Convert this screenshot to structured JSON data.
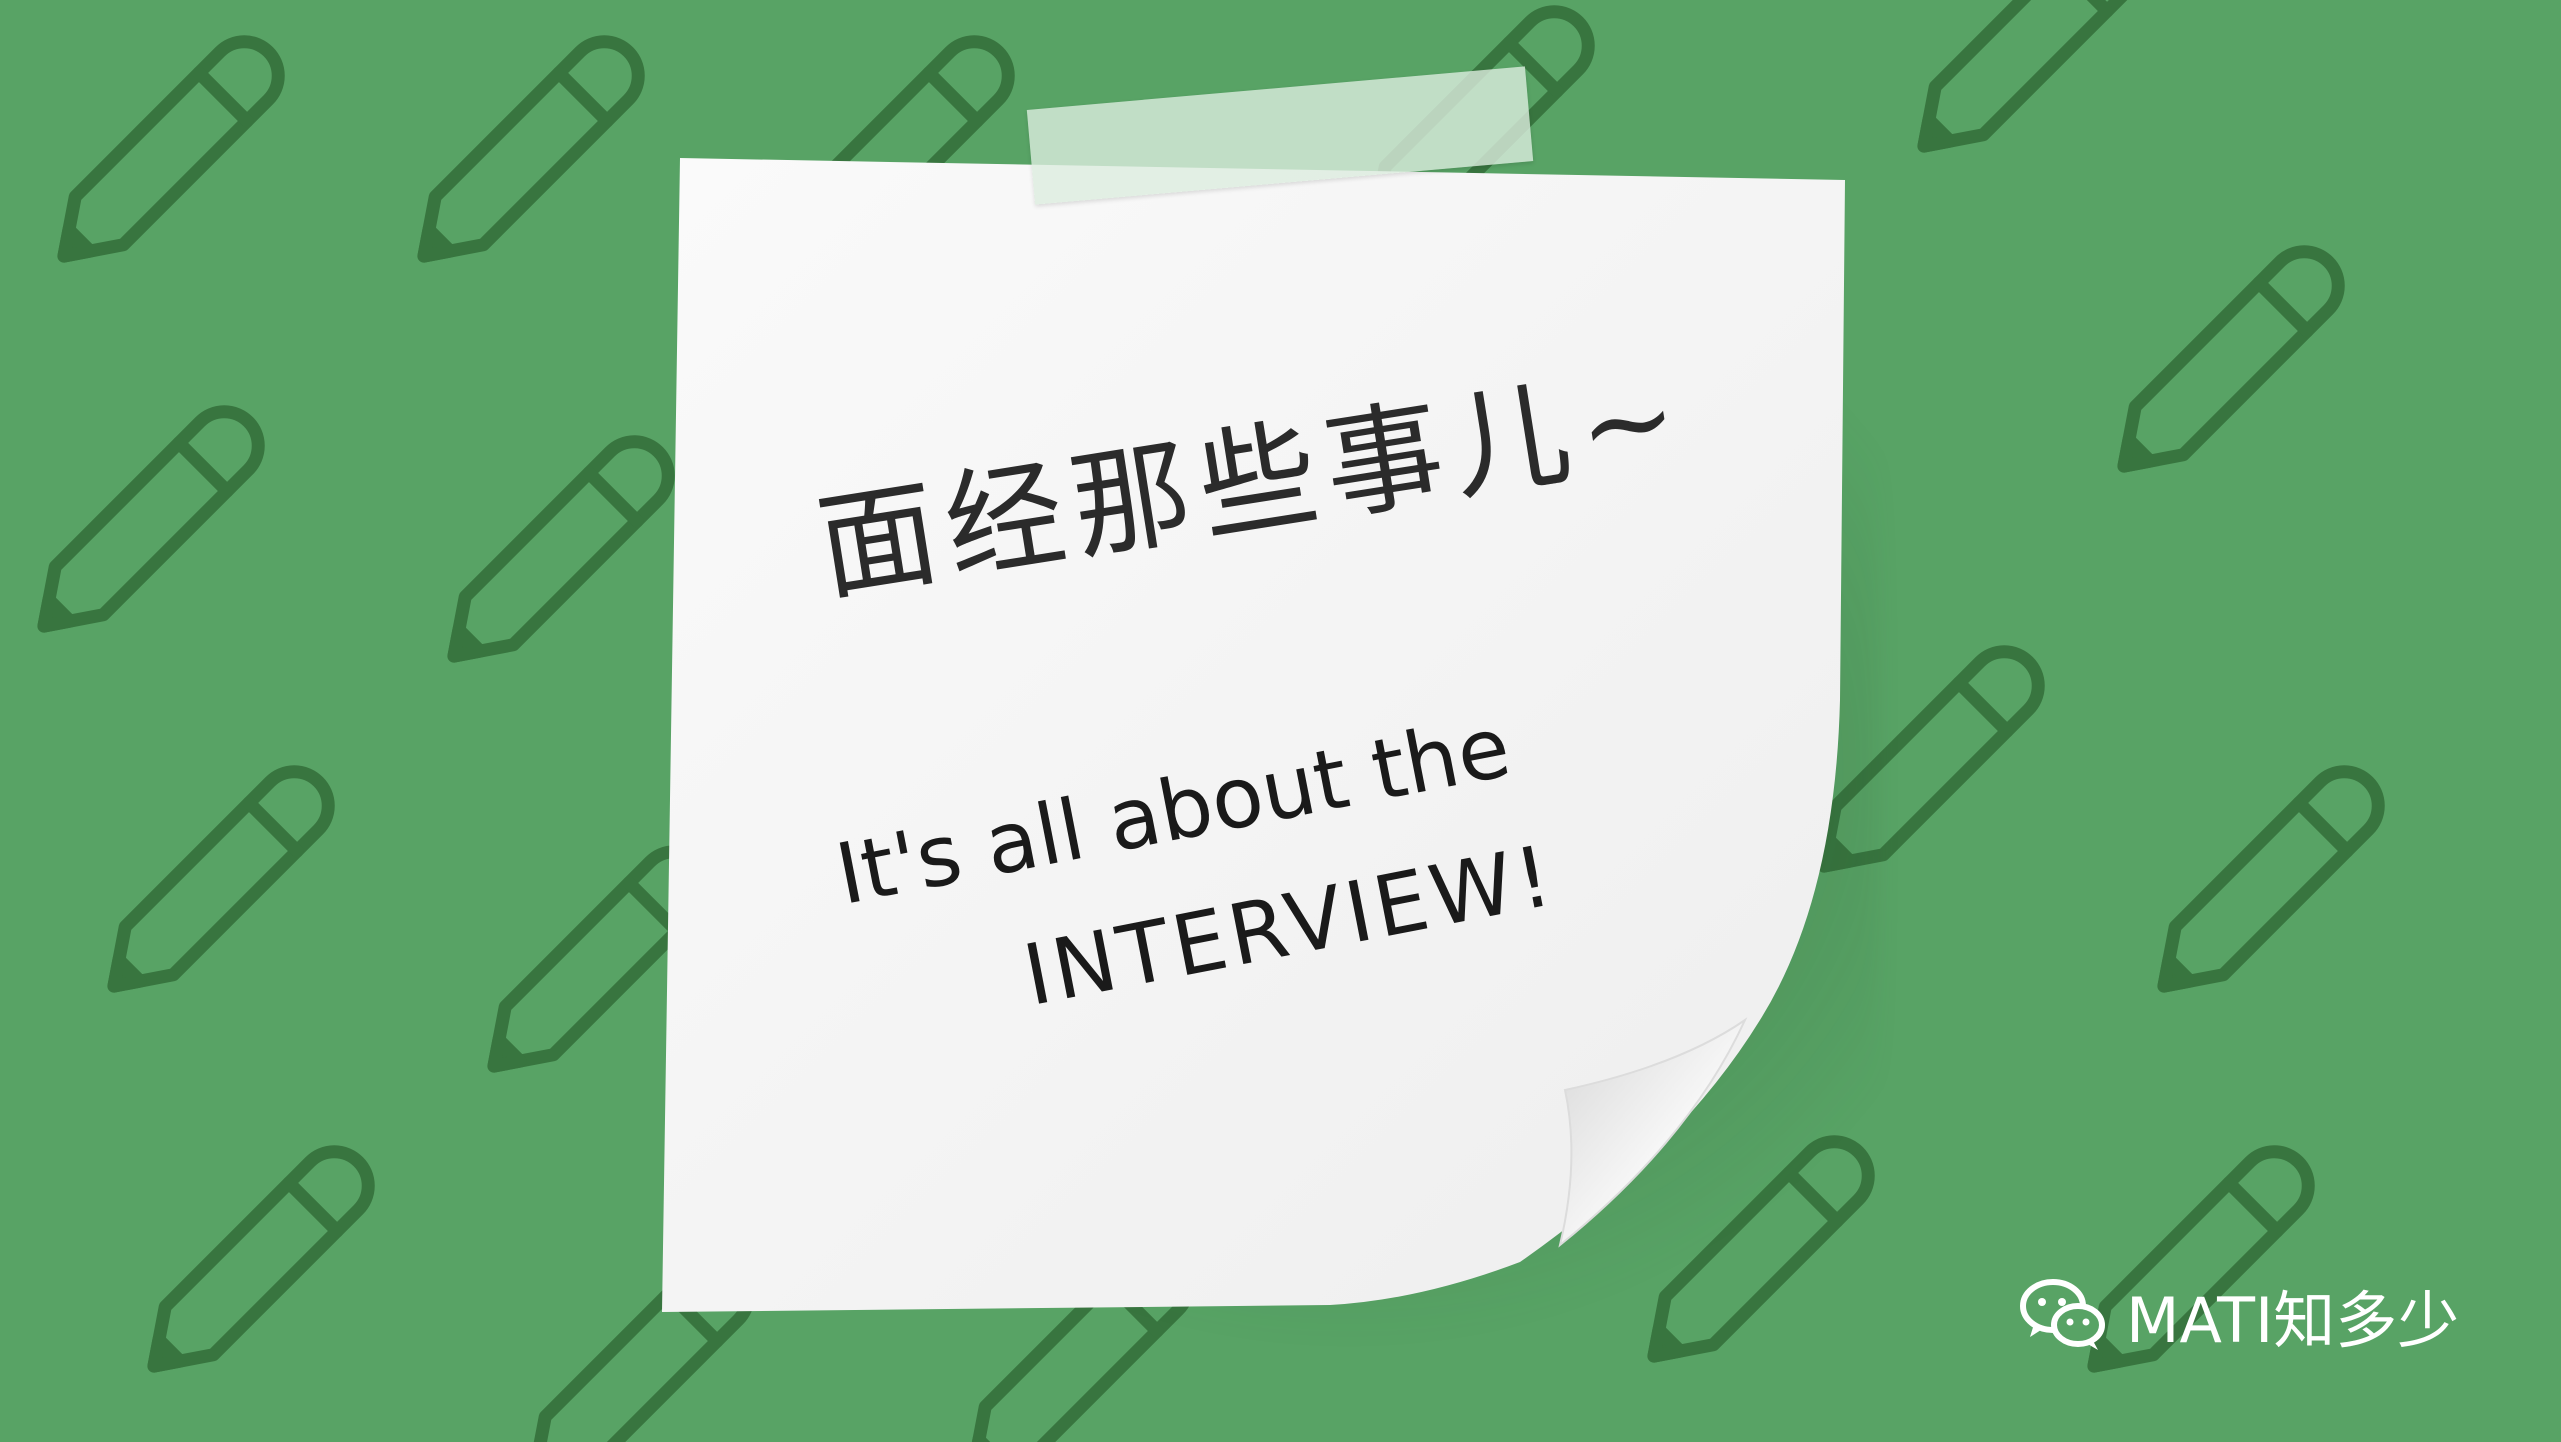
{
  "note": {
    "title": "面经那些事儿~",
    "subtitle_line1": "It's all about the",
    "subtitle_line2": "INTERVIEW!"
  },
  "watermark": {
    "icon": "wechat-icon",
    "label": "MATI知多少"
  },
  "colors": {
    "background": "#58a365",
    "pencil_outline": "#38753f",
    "note": "#f7f7f7",
    "text": "#2b2b2b"
  },
  "background_pattern": {
    "icon": "pencil-icon"
  }
}
